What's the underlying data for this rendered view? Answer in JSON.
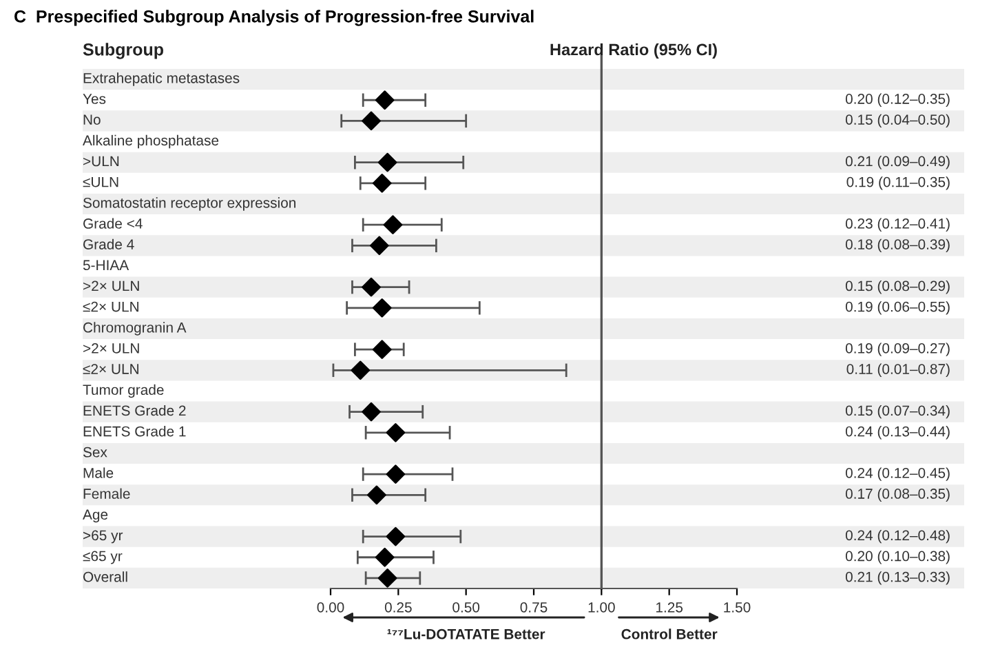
{
  "chart_data": {
    "type": "scatter",
    "orientation": "horizontal",
    "title": "C  Prespecified Subgroup Analysis of Progression-free Survival",
    "annotations": [
      "Subgroup",
      "Hazard Ratio (95% CI)",
      "¹⁷⁷Lu-DOTATATE Better",
      "Control Better"
    ],
    "categories": [
      "Extrahepatic metastases",
      "Yes",
      "No",
      "Alkaline phosphatase",
      ">ULN",
      "≤ULN",
      "Somatostatin receptor expression",
      "Grade <4",
      "Grade 4",
      "5-HIAA",
      ">2× ULN",
      "≤2× ULN",
      "Chromogranin A",
      ">2× ULN",
      "≤2× ULN",
      "Tumor grade",
      "ENETS Grade 2",
      "ENETS Grade 1",
      "Sex",
      "Male",
      "Female",
      "Age",
      ">65 yr",
      "≤65 yr",
      "Overall"
    ],
    "series": [
      {
        "color": "#000000",
        "values": [
          null,
          0.2,
          0.15,
          null,
          0.21,
          0.19,
          null,
          0.23,
          0.18,
          null,
          0.15,
          0.19,
          null,
          0.19,
          0.11,
          null,
          0.15,
          0.24,
          null,
          0.24,
          0.17,
          null,
          0.24,
          0.2,
          0.21
        ],
        "errors": [
          null,
          [
            0.12,
            0.35
          ],
          [
            0.04,
            0.5
          ],
          null,
          [
            0.09,
            0.49
          ],
          [
            0.11,
            0.35
          ],
          null,
          [
            0.12,
            0.41
          ],
          [
            0.08,
            0.39
          ],
          null,
          [
            0.08,
            0.29
          ],
          [
            0.06,
            0.55
          ],
          null,
          [
            0.09,
            0.27
          ],
          [
            0.01,
            0.87
          ],
          null,
          [
            0.07,
            0.34
          ],
          [
            0.13,
            0.44
          ],
          null,
          [
            0.12,
            0.45
          ],
          [
            0.08,
            0.35
          ],
          null,
          [
            0.12,
            0.48
          ],
          [
            0.1,
            0.38
          ],
          [
            0.13,
            0.33
          ]
        ],
        "value_labels": [
          null,
          "0.20 (0.12–0.35)",
          "0.15 (0.04–0.50)",
          null,
          "0.21 (0.09–0.49)",
          "0.19 (0.11–0.35)",
          null,
          "0.23 (0.12–0.41)",
          "0.18 (0.08–0.39)",
          null,
          "0.15 (0.08–0.29)",
          "0.19 (0.06–0.55)",
          null,
          "0.19 (0.09–0.27)",
          "0.11 (0.01–0.87)",
          null,
          "0.15 (0.07–0.34)",
          "0.24 (0.13–0.44)",
          null,
          "0.24 (0.12–0.45)",
          "0.17 (0.08–0.35)",
          null,
          "0.24 (0.12–0.48)",
          "0.20 (0.10–0.38)",
          "0.21 (0.13–0.33)"
        ]
      }
    ],
    "xlim": [
      0,
      1.5
    ],
    "xticks": [
      {
        "value": 0,
        "label": "0.00"
      },
      {
        "value": 0.25,
        "label": "0.25"
      },
      {
        "value": 0.5,
        "label": "0.50"
      },
      {
        "value": 0.75,
        "label": "0.75"
      },
      {
        "value": 1.0,
        "label": "1.00"
      },
      {
        "value": 1.25,
        "label": "1.25"
      },
      {
        "value": 1.5,
        "label": "1.50"
      }
    ],
    "ref_lines": [
      {
        "axis": "x",
        "value": 1.0,
        "label": null,
        "color": "#555555"
      }
    ],
    "marker": "diamond",
    "grid": false
  }
}
